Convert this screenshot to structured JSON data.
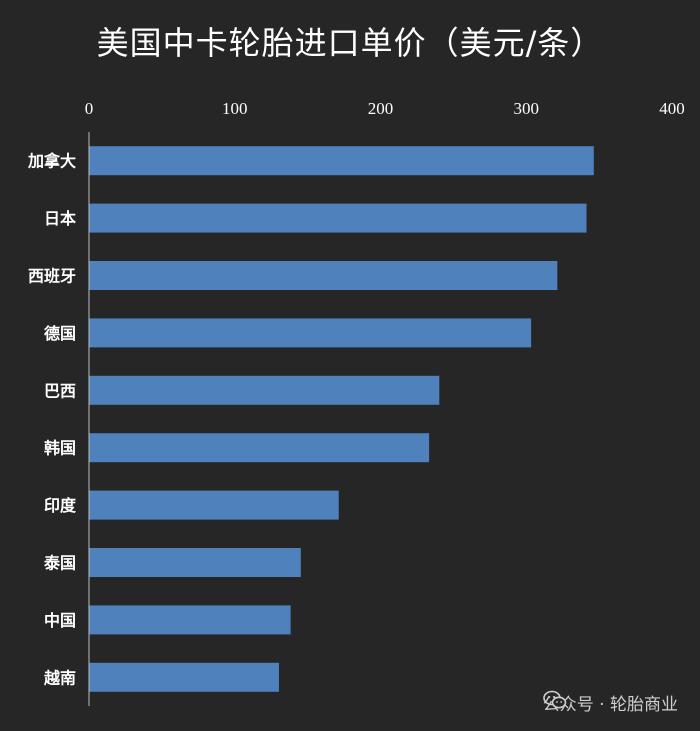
{
  "chart_data": {
    "type": "bar",
    "orientation": "horizontal",
    "title": "美国中卡轮胎进口单价（美元/条）",
    "categories": [
      "加拿大",
      "日本",
      "西班牙",
      "德国",
      "巴西",
      "韩国",
      "印度",
      "泰国",
      "中国",
      "越南"
    ],
    "values": [
      346,
      341,
      321,
      303,
      240,
      233,
      171,
      145,
      138,
      130
    ],
    "xlim": [
      0,
      400
    ],
    "xticks": [
      0,
      100,
      200,
      300,
      400
    ],
    "xaxis_position": "top",
    "grid": false,
    "legend": "none",
    "bar_color": "#4f81bd",
    "background": "#262626"
  },
  "watermark": {
    "icon": "wechat-icon",
    "text": "公众号 · 轮胎商业"
  }
}
